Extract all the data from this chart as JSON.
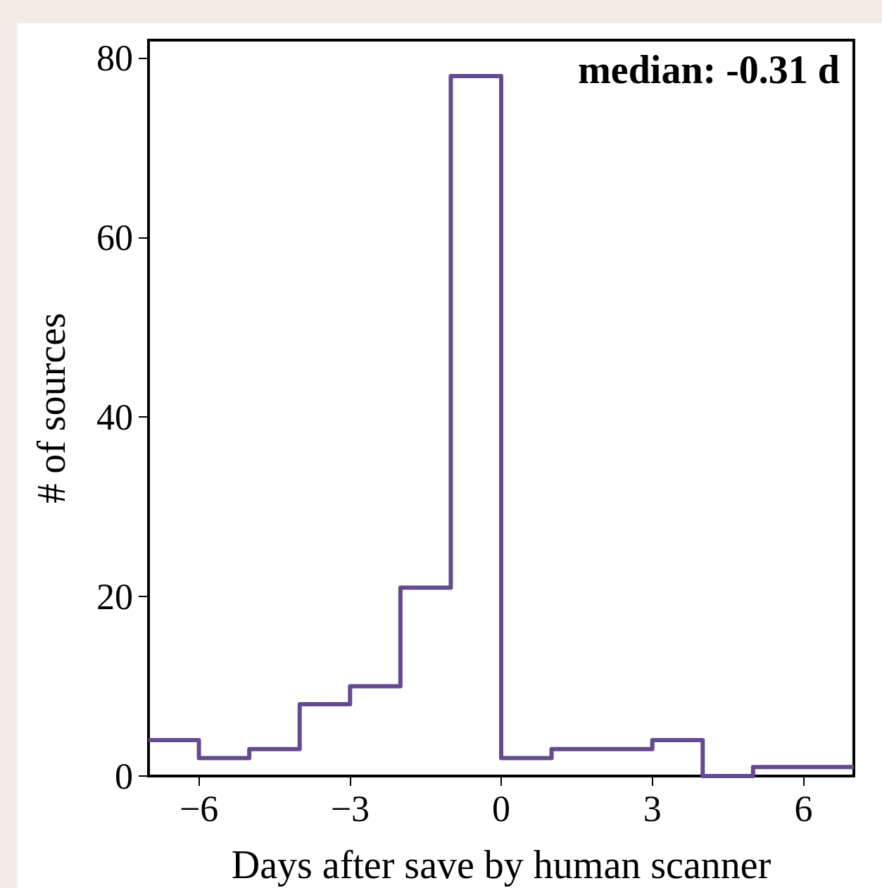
{
  "chart_data": {
    "type": "histogram",
    "xlabel": "Days after save by human scanner",
    "ylabel": "# of sources",
    "annotations": [
      "median: -0.31 d"
    ],
    "bins": [
      -7,
      -6,
      -5,
      -4,
      -3,
      -2,
      -1,
      0,
      1,
      2,
      3,
      4,
      5,
      6,
      7
    ],
    "values": [
      4,
      2,
      3,
      8,
      10,
      21,
      78,
      2,
      3,
      3,
      4,
      0,
      1,
      1
    ],
    "color": "#654a8f",
    "xlim": [
      -7,
      7
    ],
    "xticks": [
      -6,
      -3,
      0,
      3,
      6
    ],
    "ylim": [
      0,
      82
    ],
    "yticks": [
      0,
      20,
      40,
      60,
      80
    ],
    "grid": false
  }
}
